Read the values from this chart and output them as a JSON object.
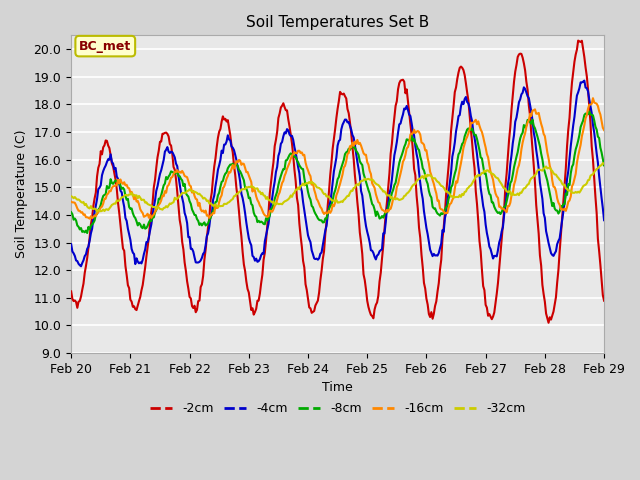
{
  "title": "Soil Temperatures Set B",
  "xlabel": "Time",
  "ylabel": "Soil Temperature (C)",
  "ylim": [
    9.0,
    20.5
  ],
  "yticks": [
    9.0,
    10.0,
    11.0,
    12.0,
    13.0,
    14.0,
    15.0,
    16.0,
    17.0,
    18.0,
    19.0,
    20.0
  ],
  "fig_facecolor": "#d4d4d4",
  "axes_facecolor": "#e8e8e8",
  "annotation_text": "BC_met",
  "annotation_facecolor": "#ffffcc",
  "annotation_edgecolor": "#bbbb00",
  "annotation_textcolor": "#880000",
  "series": {
    "-2cm": {
      "color": "#cc0000",
      "linewidth": 1.5
    },
    "-4cm": {
      "color": "#0000cc",
      "linewidth": 1.5
    },
    "-8cm": {
      "color": "#00aa00",
      "linewidth": 1.5
    },
    "-16cm": {
      "color": "#ff8800",
      "linewidth": 1.5
    },
    "-32cm": {
      "color": "#cccc00",
      "linewidth": 1.5
    }
  },
  "xticklabels": [
    "Feb 20",
    "Feb 21",
    "Feb 22",
    "Feb 23",
    "Feb 24",
    "Feb 25",
    "Feb 26",
    "Feb 27",
    "Feb 28",
    "Feb 29"
  ],
  "n_points": 433
}
